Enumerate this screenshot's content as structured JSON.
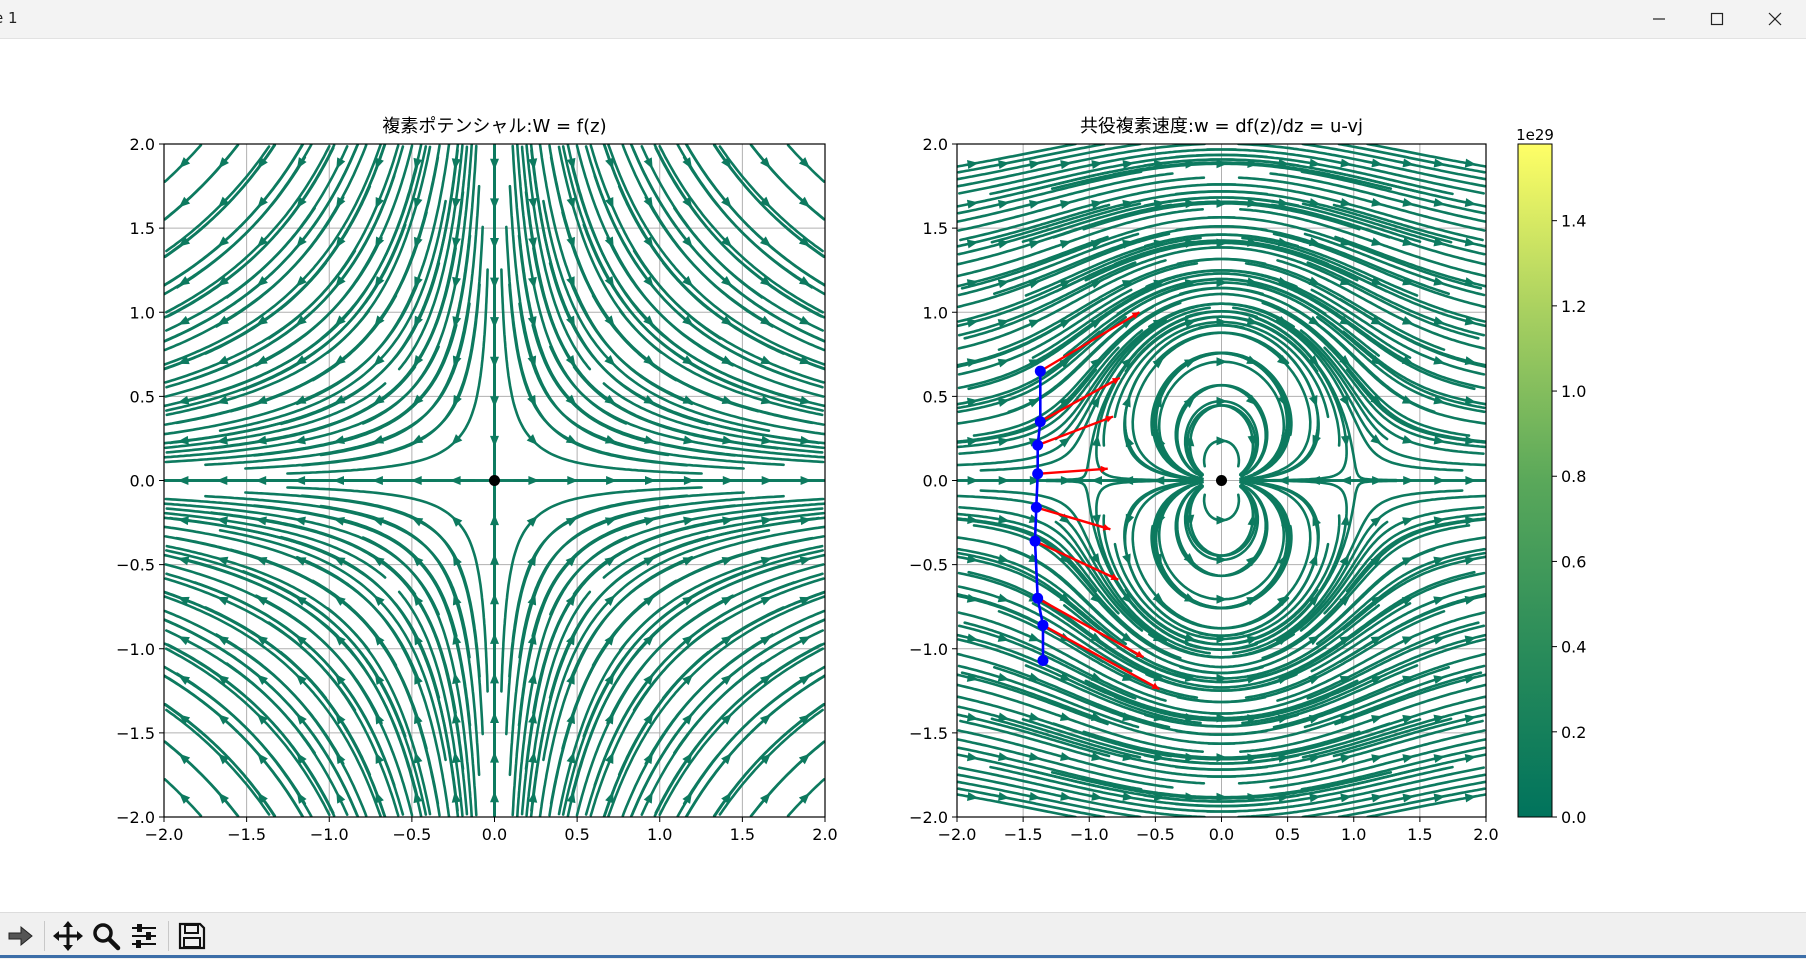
{
  "window": {
    "title": "e 1",
    "controls": [
      "minimize",
      "maximize",
      "close"
    ]
  },
  "toolbar": {
    "buttons": [
      "forward-icon",
      "pan-icon",
      "zoom-icon",
      "configure-icon",
      "save-icon"
    ]
  },
  "colors": {
    "stream": "#0d7a5f",
    "path": "#0000ff",
    "arrows": "#ff0000",
    "point": "#000000",
    "grid": "#b0b0b0",
    "colorbar_low": "#00735c",
    "colorbar_high": "#ffff66"
  },
  "chart_data": [
    {
      "type": "streamplot",
      "title": "複素ポテンシャル:W = f(z)",
      "xlim": [
        -2.0,
        2.0
      ],
      "ylim": [
        -2.0,
        2.0
      ],
      "xticks": [
        "−2.0",
        "−1.5",
        "−1.0",
        "−0.5",
        "0.0",
        "0.5",
        "1.0",
        "1.5",
        "2.0"
      ],
      "yticks": [
        "−2.0",
        "−1.5",
        "−1.0",
        "−0.5",
        "0.0",
        "0.5",
        "1.0",
        "1.5",
        "2.0"
      ],
      "grid": true,
      "points": [
        [
          0.0,
          0.0
        ]
      ]
    },
    {
      "type": "streamplot",
      "title": "共役複素速度:w = df(z)/dz = u-vj",
      "xlim": [
        -2.0,
        2.0
      ],
      "ylim": [
        -2.0,
        2.0
      ],
      "xticks": [
        "−2.0",
        "−1.5",
        "−1.0",
        "−0.5",
        "0.0",
        "0.5",
        "1.0",
        "1.5",
        "2.0"
      ],
      "yticks": [
        "−2.0",
        "−1.5",
        "−1.0",
        "−0.5",
        "0.0",
        "0.5",
        "1.0",
        "1.5",
        "2.0"
      ],
      "grid": true,
      "points": [
        [
          0.0,
          0.0
        ]
      ],
      "path_points": [
        [
          -1.37,
          0.65
        ],
        [
          -1.37,
          0.35
        ],
        [
          -1.39,
          0.21
        ],
        [
          -1.39,
          0.04
        ],
        [
          -1.4,
          -0.16
        ],
        [
          -1.41,
          -0.36
        ],
        [
          -1.39,
          -0.7
        ],
        [
          -1.35,
          -0.86
        ],
        [
          -1.35,
          -1.07
        ]
      ],
      "velocity_vectors": [
        {
          "from": [
            -1.37,
            0.65
          ],
          "to": [
            -0.62,
            1.0
          ]
        },
        {
          "from": [
            -1.37,
            0.35
          ],
          "to": [
            -0.77,
            0.61
          ]
        },
        {
          "from": [
            -1.39,
            0.21
          ],
          "to": [
            -0.82,
            0.38
          ]
        },
        {
          "from": [
            -1.39,
            0.04
          ],
          "to": [
            -0.86,
            0.07
          ]
        },
        {
          "from": [
            -1.4,
            -0.16
          ],
          "to": [
            -0.84,
            -0.29
          ]
        },
        {
          "from": [
            -1.41,
            -0.36
          ],
          "to": [
            -0.78,
            -0.59
          ]
        },
        {
          "from": [
            -1.39,
            -0.7
          ],
          "to": [
            -0.59,
            -1.05
          ]
        },
        {
          "from": [
            -1.35,
            -0.86
          ],
          "to": [
            -0.47,
            -1.24
          ]
        }
      ],
      "colorbar": {
        "exponent_label": "1e29",
        "range": [
          0.0,
          1.58
        ],
        "ticks": [
          "0.0",
          "0.2",
          "0.4",
          "0.6",
          "0.8",
          "1.0",
          "1.2",
          "1.4"
        ]
      }
    }
  ]
}
